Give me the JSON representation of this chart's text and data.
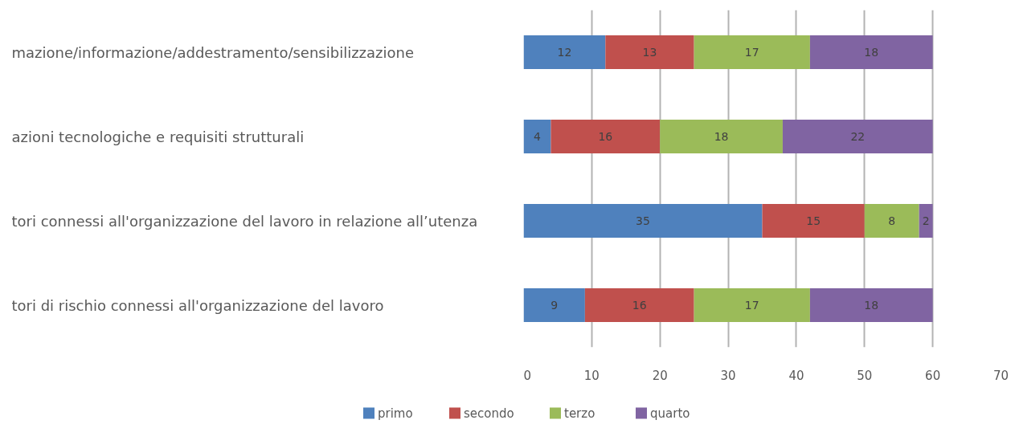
{
  "chart_data": {
    "type": "bar",
    "orientation": "horizontal",
    "stacked": true,
    "categories": [
      "mazione/informazione/addestramento/sensibilizzazione",
      "azioni tecnologiche e requisiti strutturali",
      "tori connessi all'organizzazione del lavoro in relazione all’utenza",
      "tori di rischio connessi all'organizzazione del lavoro"
    ],
    "series": [
      {
        "name": "primo",
        "color": "#4f81bd",
        "values": [
          12,
          4,
          35,
          9
        ]
      },
      {
        "name": "secondo",
        "color": "#c0504d",
        "values": [
          13,
          16,
          15,
          16
        ]
      },
      {
        "name": "terzo",
        "color": "#9bbb59",
        "values": [
          17,
          18,
          8,
          17
        ]
      },
      {
        "name": "quarto",
        "color": "#8064a2",
        "values": [
          18,
          22,
          2,
          18
        ]
      }
    ],
    "xlim": [
      0,
      70
    ],
    "xticks": [
      0,
      10,
      20,
      30,
      40,
      50,
      60,
      70
    ],
    "grid": "x",
    "legend": "bottom",
    "data_labels": true
  }
}
